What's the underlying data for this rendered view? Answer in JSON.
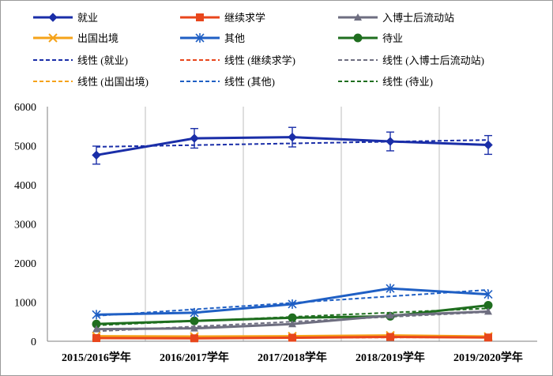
{
  "chart_data": {
    "type": "line",
    "categories": [
      "2015/2016学年",
      "2016/2017学年",
      "2017/2018学年",
      "2018/2019学年",
      "2019/2020学年"
    ],
    "ylim": [
      0,
      6000
    ],
    "yticks": [
      0,
      1000,
      2000,
      3000,
      4000,
      5000,
      6000
    ],
    "series": [
      {
        "name": "就业",
        "values": [
          4760,
          5190,
          5220,
          5110,
          5020
        ],
        "error": [
          230,
          250,
          250,
          240,
          240
        ],
        "color": "#1a2ea8",
        "marker": "diamond",
        "trend_name": "线性 (就业)"
      },
      {
        "name": "继续求学",
        "values": [
          80,
          75,
          90,
          110,
          95
        ],
        "color": "#e8461c",
        "marker": "square",
        "trend_name": "线性 (继续求学)"
      },
      {
        "name": "入博士后流动站",
        "values": [
          310,
          330,
          440,
          660,
          760
        ],
        "color": "#6e6e80",
        "marker": "triangle",
        "trend_name": "线性 (入博士后流动站)"
      },
      {
        "name": "出国出境",
        "values": [
          130,
          120,
          130,
          150,
          120
        ],
        "color": "#f5a31a",
        "marker": "x",
        "trend_name": "线性 (出国出境)"
      },
      {
        "name": "其他",
        "values": [
          680,
          730,
          950,
          1350,
          1200
        ],
        "color": "#1f5fc4",
        "marker": "star",
        "trend_name": "线性 (其他)"
      },
      {
        "name": "待业",
        "values": [
          440,
          520,
          600,
          640,
          920
        ],
        "color": "#1f6e1f",
        "marker": "circle",
        "trend_name": "线性 (待业)"
      }
    ],
    "grid": "vertical",
    "legend_position": "top"
  }
}
